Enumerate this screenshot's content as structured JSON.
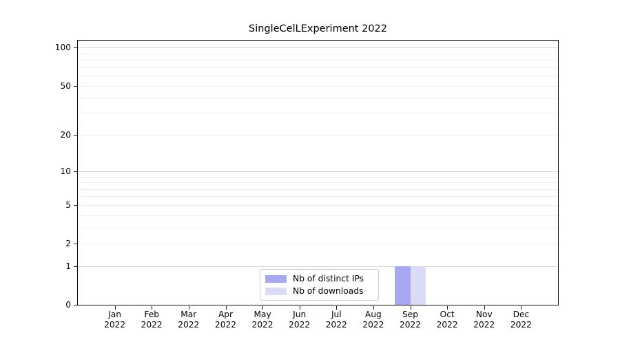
{
  "chart_data": {
    "type": "bar",
    "title": "SingleCelLExperiment 2022",
    "x": {
      "months": [
        "Jan",
        "Feb",
        "Mar",
        "Apr",
        "May",
        "Jun",
        "Jul",
        "Aug",
        "Sep",
        "Oct",
        "Nov",
        "Dec"
      ],
      "year": "2022"
    },
    "y_axis": {
      "tick_values": [
        0,
        1,
        2,
        5,
        10,
        20,
        50,
        100
      ],
      "scale": "log10(value+1)",
      "ylim": [
        0,
        113.6
      ],
      "major_gridlines": [
        1,
        10,
        100
      ],
      "minor_gridlines": [
        2,
        3,
        4,
        5,
        6,
        7,
        8,
        9,
        20,
        30,
        40,
        50,
        60,
        70,
        80,
        90
      ]
    },
    "series": [
      {
        "name": "Nb of distinct IPs",
        "color": "#a7a7f2",
        "values": [
          0,
          0,
          0,
          0,
          0,
          0,
          0,
          0,
          1,
          0,
          0,
          0
        ]
      },
      {
        "name": "Nb of downloads",
        "color": "#dbdbf8",
        "values": [
          0,
          0,
          0,
          0,
          0,
          0,
          0,
          0,
          1,
          0,
          0,
          0
        ]
      }
    ],
    "legend": {
      "position": "inside-bottom-center"
    },
    "grid": {
      "minor_color": "#eeeeee",
      "major_color": "#d5d5d5"
    }
  }
}
